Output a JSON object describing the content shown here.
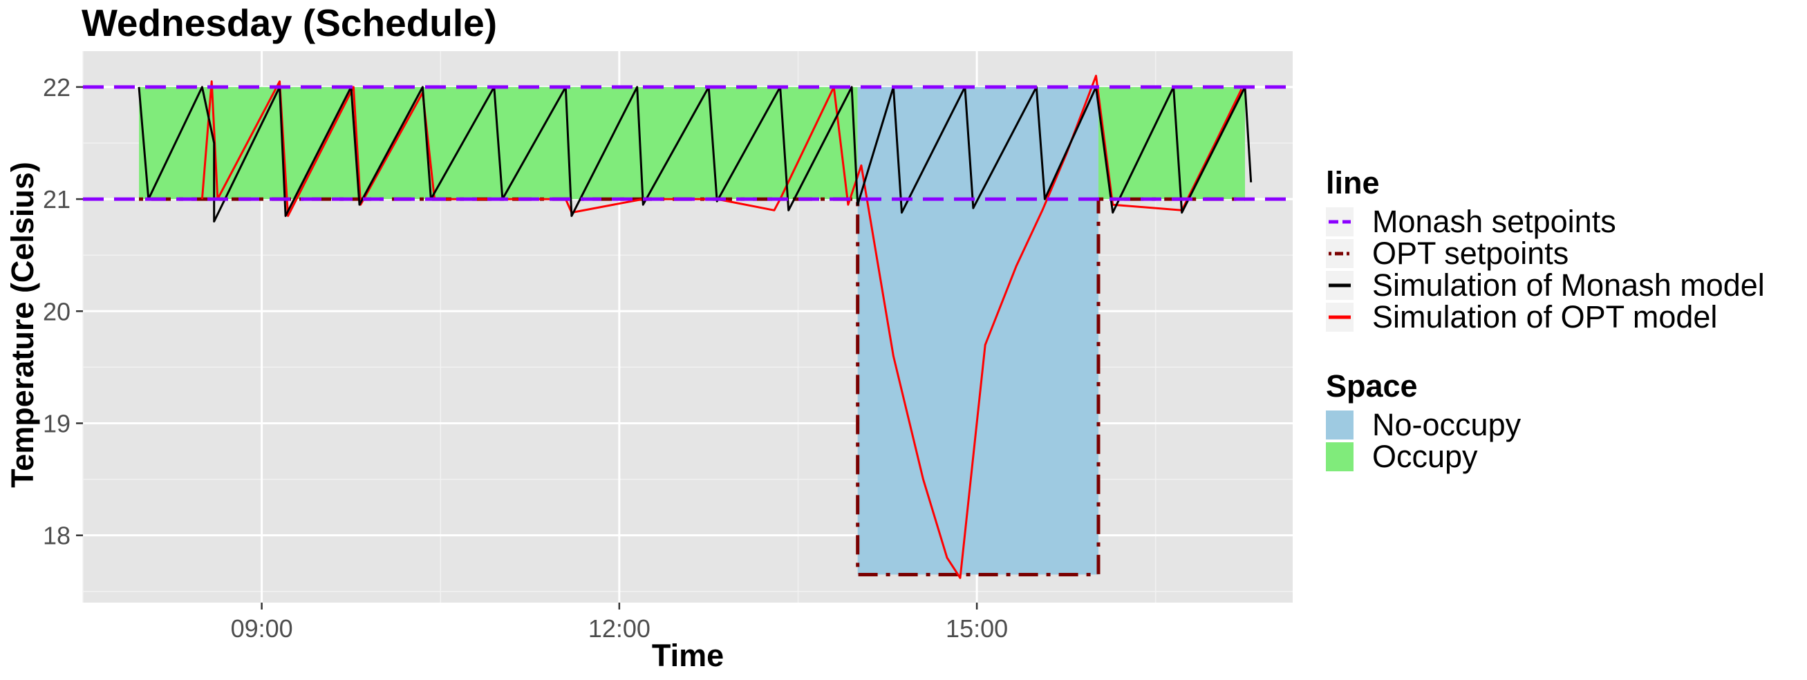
{
  "chart_data": {
    "type": "line",
    "title": "Wednesday (Schedule)",
    "xlabel": "Time",
    "ylabel": "Temperature (Celsius)",
    "x_unit": "hours",
    "xlim": [
      7.5,
      17.65
    ],
    "ylim": [
      17.4,
      22.32
    ],
    "x_ticks": [
      {
        "value": 9,
        "label": "09:00"
      },
      {
        "value": 12,
        "label": "12:00"
      },
      {
        "value": 15,
        "label": "15:00"
      }
    ],
    "y_ticks": [
      {
        "value": 18,
        "label": "18"
      },
      {
        "value": 19,
        "label": "19"
      },
      {
        "value": 20,
        "label": "20"
      },
      {
        "value": 21,
        "label": "21"
      },
      {
        "value": 22,
        "label": "22"
      }
    ],
    "grid": true,
    "space_regions": [
      {
        "space": "Occupy",
        "x_start": 7.97,
        "x_end": 14.0,
        "y_min": 21,
        "y_max": 22
      },
      {
        "space": "No-occupy",
        "x_start": 14.0,
        "x_end": 16.02,
        "y_min": 17.65,
        "y_max": 22
      },
      {
        "space": "Occupy",
        "x_start": 16.02,
        "x_end": 17.25,
        "y_min": 21,
        "y_max": 22
      }
    ],
    "series": [
      {
        "name": "Monash setpoints",
        "style": "dashed",
        "color": "#8B00FF",
        "segments": [
          {
            "x": [
              7.5,
              17.65
            ],
            "y": [
              22,
              22
            ]
          },
          {
            "x": [
              7.5,
              17.65
            ],
            "y": [
              21,
              21
            ]
          }
        ]
      },
      {
        "name": "OPT setpoints",
        "style": "dotdash",
        "color": "#7A0000",
        "x": [
          7.97,
          14.0,
          14.0,
          16.02,
          16.02,
          17.25
        ],
        "y": [
          21,
          21,
          17.65,
          17.65,
          21,
          21
        ]
      },
      {
        "name": "Simulation of Monash model",
        "style": "solid",
        "color": "#000000",
        "x": [
          7.97,
          8.05,
          8.5,
          8.6,
          8.6,
          9.15,
          9.2,
          9.75,
          9.82,
          10.35,
          10.42,
          10.95,
          11.02,
          11.55,
          11.6,
          12.15,
          12.2,
          12.75,
          12.82,
          13.35,
          13.42,
          13.95,
          14.0,
          14.3,
          14.37,
          14.9,
          14.97,
          15.5,
          15.57,
          16.0,
          16.14,
          16.65,
          16.72,
          17.25,
          17.3
        ],
        "y": [
          22,
          21,
          22,
          21.5,
          20.8,
          22,
          20.85,
          22,
          20.95,
          22,
          21,
          22,
          21,
          22,
          20.85,
          22,
          20.95,
          22,
          20.98,
          22,
          20.9,
          22,
          20.95,
          22,
          20.88,
          22,
          20.92,
          22,
          21,
          22,
          20.88,
          22,
          20.88,
          22,
          21.15
        ]
      },
      {
        "name": "Simulation of OPT model",
        "style": "solid",
        "color": "#FF0000",
        "x": [
          8.5,
          8.58,
          8.63,
          9.15,
          9.22,
          9.77,
          9.83,
          10.35,
          10.45,
          11.55,
          11.6,
          12.2,
          12.75,
          12.82,
          13.3,
          13.35,
          13.8,
          13.92,
          14.03,
          14.3,
          14.55,
          14.75,
          14.86,
          15.07,
          15.33,
          15.55,
          15.75,
          16.0,
          16.14,
          16.72,
          17.0,
          17.22
        ],
        "y": [
          21.0,
          22.05,
          21.0,
          22.05,
          20.85,
          22.0,
          20.95,
          21.95,
          21.0,
          21.0,
          20.88,
          21.0,
          21.0,
          21.0,
          20.9,
          21.0,
          22.0,
          20.95,
          21.3,
          19.6,
          18.5,
          17.8,
          17.62,
          19.7,
          20.4,
          20.9,
          21.4,
          22.1,
          20.95,
          20.9,
          21.5,
          21.98
        ]
      }
    ],
    "legend": {
      "position": "right",
      "groups": [
        {
          "title": "line",
          "items": [
            {
              "label": "Monash setpoints",
              "key": "dashed",
              "color": "#8B00FF"
            },
            {
              "label": "OPT setpoints",
              "key": "dotdash",
              "color": "#7A0000"
            },
            {
              "label": "Simulation of Monash model",
              "key": "solid",
              "color": "#000000"
            },
            {
              "label": "Simulation of OPT model",
              "key": "solid",
              "color": "#FF0000"
            }
          ]
        },
        {
          "title": "Space",
          "items": [
            {
              "label": "No-occupy",
              "key": "fill",
              "color": "#9ECAE1"
            },
            {
              "label": "Occupy",
              "key": "fill",
              "color": "#80EB7B"
            }
          ]
        }
      ]
    },
    "colors": {
      "panel_background": "#E5E5E5",
      "grid_major": "#FFFFFF",
      "occupy_fill": "#80EB7B",
      "no_occupy_fill": "#9ECAE1"
    }
  }
}
